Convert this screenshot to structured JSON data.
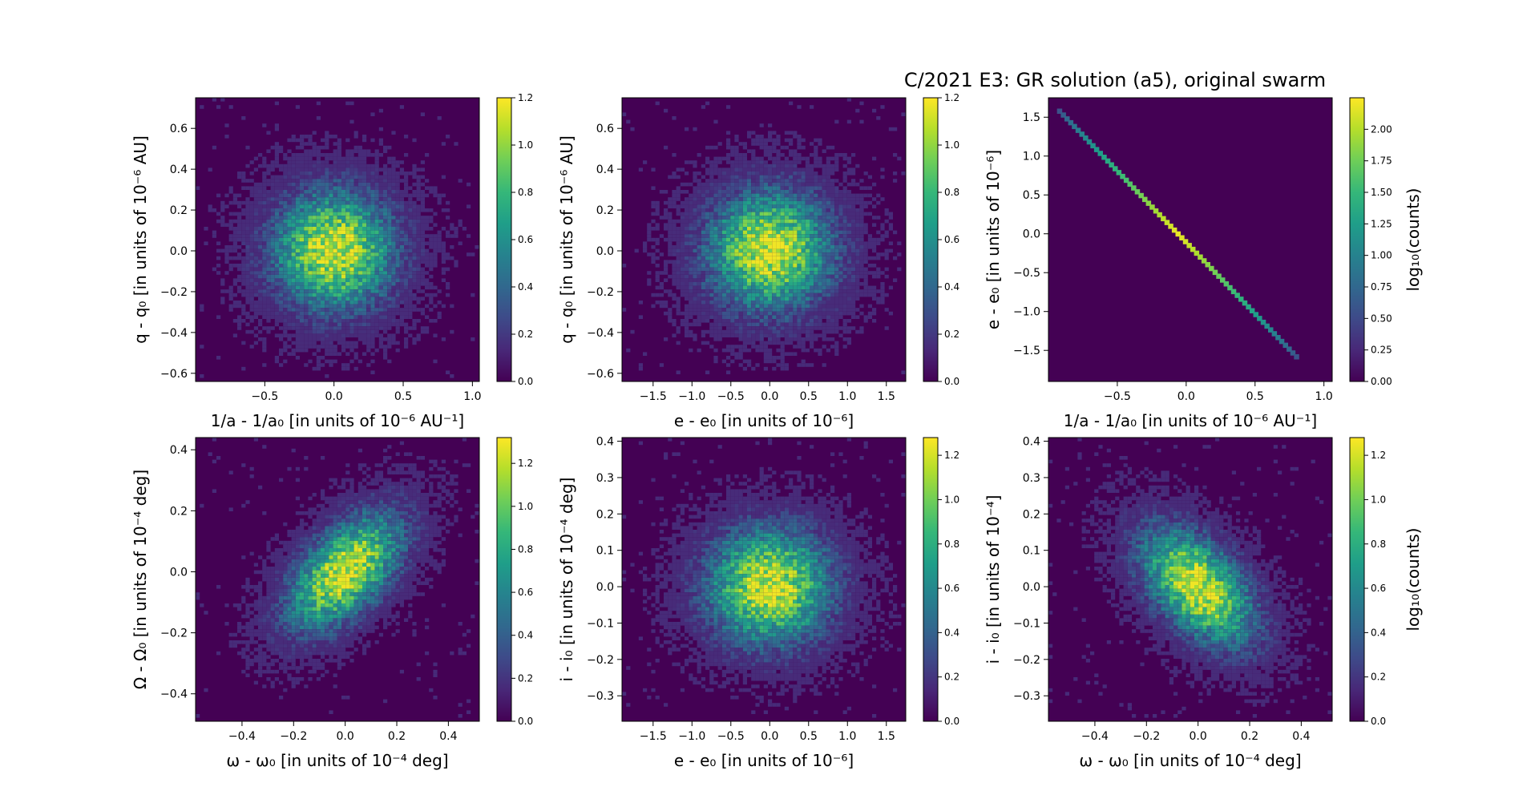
{
  "title": "C/2021 E3: GR solution (a5), original swarm",
  "colormap": [
    "#440154",
    "#482878",
    "#3e4a89",
    "#31688e",
    "#26828e",
    "#1f9e89",
    "#35b779",
    "#6ece58",
    "#b5de2b",
    "#fde725"
  ],
  "chart_data": [
    {
      "type": "heatmap",
      "id": "p1",
      "xlabel": "1/a - 1/a₀ [in units of 10⁻⁶ AU⁻¹]",
      "ylabel": "q - q₀ [in units of 10⁻⁶ AU]",
      "xlim": [
        -1.0,
        1.05
      ],
      "ylim": [
        -0.64,
        0.75
      ],
      "xticks": [
        -0.5,
        0.0,
        0.5,
        1.0
      ],
      "xtick_labels": [
        "−0.5",
        "0.0",
        "0.5",
        "1.0"
      ],
      "yticks": [
        -0.6,
        -0.4,
        -0.2,
        0.0,
        0.2,
        0.4,
        0.6
      ],
      "ytick_labels": [
        "−0.6",
        "−0.4",
        "−0.2",
        "0.0",
        "0.2",
        "0.4",
        "0.6"
      ],
      "distribution": {
        "mean": [
          0,
          0
        ],
        "sd": [
          0.3,
          0.2
        ],
        "corr": 0
      },
      "colorbar": {
        "range": [
          0,
          1.2
        ],
        "ticks": [
          0,
          0.2,
          0.4,
          0.6,
          0.8,
          1.0,
          1.2
        ],
        "tick_labels": [
          "0.0",
          "0.2",
          "0.4",
          "0.6",
          "0.8",
          "1.0",
          "1.2"
        ],
        "label": ""
      }
    },
    {
      "type": "heatmap",
      "id": "p2",
      "xlabel": "e - e₀ [in units of 10⁻⁶]",
      "ylabel": "q - q₀ [in units of 10⁻⁶ AU]",
      "xlim": [
        -1.9,
        1.75
      ],
      "ylim": [
        -0.64,
        0.75
      ],
      "xticks": [
        -1.5,
        -1.0,
        -0.5,
        0.0,
        0.5,
        1.0,
        1.5
      ],
      "xtick_labels": [
        "−1.5",
        "−1.0",
        "−0.5",
        "0.0",
        "0.5",
        "1.0",
        "1.5"
      ],
      "yticks": [
        -0.6,
        -0.4,
        -0.2,
        0.0,
        0.2,
        0.4,
        0.6
      ],
      "ytick_labels": [
        "−0.6",
        "−0.4",
        "−0.2",
        "0.0",
        "0.2",
        "0.4",
        "0.6"
      ],
      "distribution": {
        "mean": [
          0,
          0
        ],
        "sd": [
          0.55,
          0.2
        ],
        "corr": 0
      },
      "colorbar": {
        "range": [
          0,
          1.2
        ],
        "ticks": [
          0,
          0.2,
          0.4,
          0.6,
          0.8,
          1.0,
          1.2
        ],
        "tick_labels": [
          "0.0",
          "0.2",
          "0.4",
          "0.6",
          "0.8",
          "1.0",
          "1.2"
        ],
        "label": ""
      }
    },
    {
      "type": "heatmap",
      "id": "p3",
      "xlabel": "1/a - 1/a₀ [in units of 10⁻⁶ AU⁻¹]",
      "ylabel": "e - e₀ [in units of 10⁻⁶]",
      "xlim": [
        -1.0,
        1.06
      ],
      "ylim": [
        -1.9,
        1.75
      ],
      "xticks": [
        -0.5,
        0.0,
        0.5,
        1.0
      ],
      "xtick_labels": [
        "−0.5",
        "0.0",
        "0.5",
        "1.0"
      ],
      "yticks": [
        -1.5,
        -1.0,
        -0.5,
        0.0,
        0.5,
        1.0,
        1.5
      ],
      "ytick_labels": [
        "−1.5",
        "−1.0",
        "−0.5",
        "0.0",
        "0.5",
        "1.0",
        "1.5"
      ],
      "line": {
        "from": [
          -0.92,
          1.58
        ],
        "to": [
          0.8,
          -1.58
        ]
      },
      "colorbar": {
        "range": [
          0,
          2.25
        ],
        "ticks": [
          0,
          0.25,
          0.5,
          0.75,
          1.0,
          1.25,
          1.5,
          1.75,
          2.0
        ],
        "tick_labels": [
          "0.00",
          "0.25",
          "0.50",
          "0.75",
          "1.00",
          "1.25",
          "1.50",
          "1.75",
          "2.00"
        ],
        "label": "log₁₀(counts)"
      }
    },
    {
      "type": "heatmap",
      "id": "p4",
      "xlabel": "ω - ω₀ [in units of 10⁻⁴ deg]",
      "ylabel": "Ω - Ω₀ [in units of 10⁻⁴ deg]",
      "xlim": [
        -0.58,
        0.52
      ],
      "ylim": [
        -0.49,
        0.44
      ],
      "xticks": [
        -0.4,
        -0.2,
        0.0,
        0.2,
        0.4
      ],
      "xtick_labels": [
        "−0.4",
        "−0.2",
        "0.0",
        "0.2",
        "0.4"
      ],
      "yticks": [
        -0.4,
        -0.2,
        0.0,
        0.2,
        0.4
      ],
      "ytick_labels": [
        "−0.4",
        "−0.2",
        "0.0",
        "0.2",
        "0.4"
      ],
      "distribution": {
        "mean": [
          0,
          0
        ],
        "sd": [
          0.15,
          0.13
        ],
        "corr": 0.55
      },
      "colorbar": {
        "range": [
          0,
          1.32
        ],
        "ticks": [
          0,
          0.2,
          0.4,
          0.6,
          0.8,
          1.0,
          1.2
        ],
        "tick_labels": [
          "0.0",
          "0.2",
          "0.4",
          "0.6",
          "0.8",
          "1.0",
          "1.2"
        ],
        "label": ""
      }
    },
    {
      "type": "heatmap",
      "id": "p5",
      "xlabel": "e - e₀ [in units of 10⁻⁶]",
      "ylabel": "i - i₀ [in units of 10⁻⁴ deg]",
      "xlim": [
        -1.9,
        1.75
      ],
      "ylim": [
        -0.37,
        0.41
      ],
      "xticks": [
        -1.5,
        -1.0,
        -0.5,
        0.0,
        0.5,
        1.0,
        1.5
      ],
      "xtick_labels": [
        "−1.5",
        "−1.0",
        "−0.5",
        "0.0",
        "0.5",
        "1.0",
        "1.5"
      ],
      "yticks": [
        -0.3,
        -0.2,
        -0.1,
        0.0,
        0.1,
        0.2,
        0.3,
        0.4
      ],
      "ytick_labels": [
        "−0.3",
        "−0.2",
        "−0.1",
        "0.0",
        "0.1",
        "0.2",
        "0.3",
        "0.4"
      ],
      "distribution": {
        "mean": [
          0,
          0
        ],
        "sd": [
          0.55,
          0.11
        ],
        "corr": 0
      },
      "colorbar": {
        "range": [
          0,
          1.28
        ],
        "ticks": [
          0,
          0.2,
          0.4,
          0.6,
          0.8,
          1.0,
          1.2
        ],
        "tick_labels": [
          "0.0",
          "0.2",
          "0.4",
          "0.6",
          "0.8",
          "1.0",
          "1.2"
        ],
        "label": ""
      }
    },
    {
      "type": "heatmap",
      "id": "p6",
      "xlabel": "ω - ω₀ [in units of 10⁻⁴ deg]",
      "ylabel": "i - i₀ [in units of 10⁻⁴]",
      "xlim": [
        -0.58,
        0.52
      ],
      "ylim": [
        -0.37,
        0.41
      ],
      "xticks": [
        -0.4,
        -0.2,
        0.0,
        0.2,
        0.4
      ],
      "xtick_labels": [
        "−0.4",
        "−0.2",
        "0.0",
        "0.2",
        "0.4"
      ],
      "yticks": [
        -0.3,
        -0.2,
        -0.1,
        0.0,
        0.1,
        0.2,
        0.3,
        0.4
      ],
      "ytick_labels": [
        "−0.3",
        "−0.2",
        "−0.1",
        "0.0",
        "0.1",
        "0.2",
        "0.3",
        "0.4"
      ],
      "distribution": {
        "mean": [
          0,
          0
        ],
        "sd": [
          0.15,
          0.11
        ],
        "corr": -0.5
      },
      "colorbar": {
        "range": [
          0,
          1.28
        ],
        "ticks": [
          0,
          0.2,
          0.4,
          0.6,
          0.8,
          1.0,
          1.2
        ],
        "tick_labels": [
          "0.0",
          "0.2",
          "0.4",
          "0.6",
          "0.8",
          "1.0",
          "1.2"
        ],
        "label": "log₁₀(counts)"
      }
    }
  ]
}
